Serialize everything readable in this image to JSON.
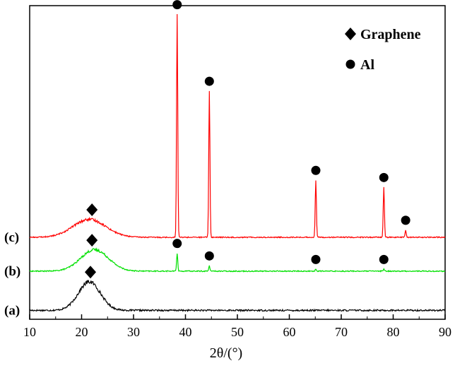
{
  "chart_data": {
    "type": "line",
    "xlabel": "2θ/(°)",
    "ylabel": "",
    "xlim": [
      10,
      90
    ],
    "x_ticks": [
      10,
      20,
      30,
      40,
      50,
      60,
      70,
      80,
      90
    ],
    "grid": false,
    "legend": {
      "position": "top-right",
      "entries": [
        {
          "marker": "diamond",
          "label": "Graphene"
        },
        {
          "marker": "circle",
          "label": "Al"
        }
      ]
    },
    "series": [
      {
        "label": "(a)",
        "color": "#000000",
        "baseline": 0.5,
        "hump": {
          "center": 21.5,
          "height": 1.6,
          "width": 3.0
        },
        "peaks": [],
        "markers": [
          {
            "x": 21.7,
            "symbol": "diamond"
          }
        ]
      },
      {
        "label": "(b)",
        "color": "#00e000",
        "baseline": 2.7,
        "hump": {
          "center": 22.5,
          "height": 1.2,
          "width": 3.8
        },
        "peaks": [
          {
            "x": 38.4,
            "height": 1.0
          },
          {
            "x": 44.6,
            "height": 0.3
          },
          {
            "x": 65.1,
            "height": 0.1
          },
          {
            "x": 78.2,
            "height": 0.1
          }
        ],
        "markers": [
          {
            "x": 22.0,
            "symbol": "diamond"
          },
          {
            "x": 38.4,
            "symbol": "circle"
          },
          {
            "x": 44.6,
            "symbol": "circle"
          },
          {
            "x": 65.1,
            "symbol": "circle"
          },
          {
            "x": 78.2,
            "symbol": "circle"
          }
        ]
      },
      {
        "label": "(c)",
        "color": "#ff0000",
        "baseline": 4.6,
        "hump": {
          "center": 21.5,
          "height": 1.0,
          "width": 4.5
        },
        "peaks": [
          {
            "x": 38.4,
            "height": 12.5
          },
          {
            "x": 44.6,
            "height": 8.2
          },
          {
            "x": 65.1,
            "height": 3.2
          },
          {
            "x": 78.2,
            "height": 2.8
          },
          {
            "x": 82.4,
            "height": 0.4
          }
        ],
        "markers": [
          {
            "x": 22.0,
            "symbol": "diamond"
          },
          {
            "x": 38.4,
            "symbol": "circle"
          },
          {
            "x": 44.6,
            "symbol": "circle"
          },
          {
            "x": 65.1,
            "symbol": "circle"
          },
          {
            "x": 78.2,
            "symbol": "circle"
          },
          {
            "x": 82.4,
            "symbol": "circle"
          }
        ]
      }
    ]
  }
}
